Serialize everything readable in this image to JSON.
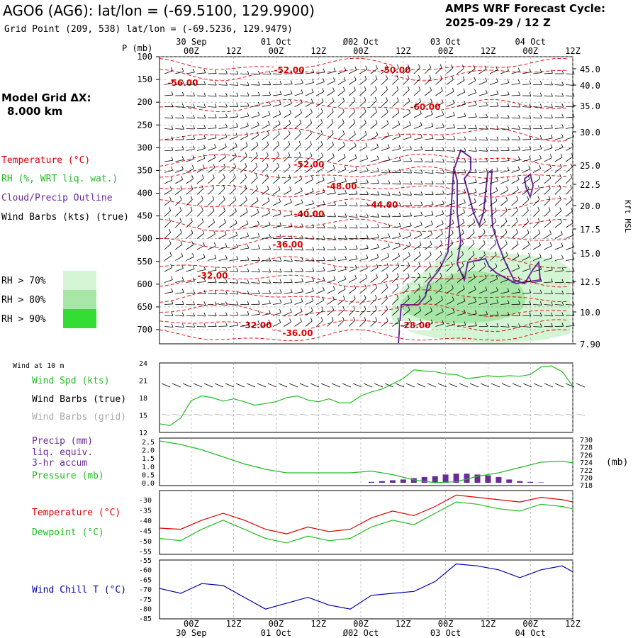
{
  "header": {
    "title": "AGO6 (AG6):  lat/lon = (-69.5100, 129.9900)",
    "subtitle": "Grid Point (209, 538) lat/lon = (-69.5236, 129.9479)",
    "cycle_line1": "AMPS WRF Forecast Cycle:",
    "cycle_line2": "2025-09-29 / 12  Z"
  },
  "colors": {
    "temperature": "#e00000",
    "rh": "#22bb22",
    "cloud": "#6a2a9a",
    "wind": "#000000",
    "grid_barb": "#aaaaaa",
    "wind_chill": "#0000aa",
    "rh70": "#d4f5d4",
    "rh80": "#a6e6a6",
    "rh90": "#33dd33"
  },
  "left_panel": {
    "model_grid_label": "Model Grid ΔX:",
    "model_grid_value": "8.000 km",
    "legend_temperature": "Temperature (°C)",
    "legend_rh": "RH (%, WRT liq. wat.)",
    "legend_cloud": "Cloud/Precip Outline",
    "legend_wind": "Wind Barbs (kts) (true)",
    "rh_70": "RH > 70%",
    "rh_80": "RH > 80%",
    "rh_90": "RH > 90%"
  },
  "chart_data": [
    {
      "type": "contour-profile",
      "name": "upper-air cross-section",
      "pressure_label": "P (mb)",
      "pressure_ticks": [
        100,
        150,
        200,
        250,
        300,
        350,
        400,
        450,
        500,
        550,
        600,
        650,
        700
      ],
      "height_ticks": [
        "45.0",
        "40.0",
        "35.0",
        "30.0",
        "25.0",
        "22.5",
        "20.0",
        "17.5",
        "15.0",
        "12.5",
        "10.0",
        "7.90"
      ],
      "height_axis_label": "Kft MSL",
      "time_top_dates": [
        "30 Sep",
        "01 Oct",
        "Ø02 Oct",
        "03 Oct",
        "04 Oct"
      ],
      "time_labels": [
        "00Z",
        "12Z",
        "00Z",
        "12Z",
        "00Z",
        "12Z",
        "00Z",
        "12Z",
        "00Z",
        "12Z"
      ],
      "temperature_labels": [
        "-52.00",
        "-50.00",
        "-56.00",
        "-60.00",
        "-52.00",
        "-48.00",
        "-44.00",
        "-40.00",
        "-36.00",
        "-32.00",
        "-32.00",
        "-36.00",
        "-28.00"
      ]
    },
    {
      "type": "line",
      "name": "wind speed",
      "header_label": "Wind at 10 m",
      "ylabel": "Wind Spd (kts)",
      "legend_barbs_true": "Wind Barbs (true)",
      "legend_barbs_grid": "Wind Barbs (grid)",
      "y_ticks": [
        24,
        21,
        18,
        15,
        12
      ],
      "ylim": [
        12,
        24
      ],
      "x_hours": [
        0,
        3,
        6,
        9,
        12,
        15,
        18,
        21,
        24,
        27,
        30,
        33,
        36,
        39,
        42,
        45,
        48,
        51,
        54,
        57,
        60,
        63,
        66,
        69,
        72,
        75,
        78,
        81,
        84,
        87,
        90,
        93,
        96,
        99,
        102,
        105,
        108,
        111,
        114,
        117
      ],
      "values": [
        13.5,
        13.2,
        14.5,
        17.5,
        18.3,
        18.0,
        17.4,
        17.8,
        17.3,
        16.7,
        17.0,
        17.3,
        18.0,
        18.3,
        17.6,
        17.3,
        17.8,
        17.1,
        17.1,
        18.3,
        19.0,
        19.5,
        20.4,
        21.3,
        22.8,
        22.6,
        22.5,
        22.1,
        22.0,
        21.3,
        21.5,
        21.8,
        21.6,
        21.8,
        21.7,
        22.0,
        23.3,
        23.5,
        22.5,
        20.0
      ]
    },
    {
      "type": "bar+line",
      "name": "precip and pressure",
      "ylabel_precip_1": "Precip (mm)",
      "ylabel_precip_2": "liq. equiv.",
      "ylabel_precip_3": "3-hr accum",
      "ylabel_pressure": "Pressure (mb)",
      "pressure_unit": "(mb)",
      "precip_ticks": [
        "2.5",
        "2.0",
        "1.5",
        "1.0",
        "0.5",
        "0.0"
      ],
      "pressure_ticks": [
        "730",
        "728",
        "726",
        "724",
        "722",
        "720",
        "718"
      ],
      "precip_hours": [
        60,
        63,
        66,
        69,
        72,
        75,
        78,
        81,
        84,
        87,
        90,
        93,
        96,
        99,
        102,
        105,
        108
      ],
      "precip_values": [
        0.05,
        0.1,
        0.15,
        0.2,
        0.28,
        0.35,
        0.4,
        0.5,
        0.55,
        0.55,
        0.5,
        0.45,
        0.35,
        0.2,
        0.1,
        0.05,
        0.02
      ],
      "pressure_hours": [
        0,
        6,
        12,
        18,
        24,
        30,
        36,
        42,
        48,
        54,
        60,
        66,
        72,
        78,
        84,
        90,
        96,
        102,
        108,
        114,
        117
      ],
      "pressure_values": [
        730,
        729,
        727.5,
        725.5,
        723.5,
        722,
        721,
        721,
        721,
        721,
        721.5,
        720.5,
        719,
        718.2,
        718.5,
        720,
        721,
        722.5,
        724,
        724.3,
        723.8
      ]
    },
    {
      "type": "line",
      "name": "temperature and dewpoint",
      "ylabel_temperature": "Temperature (°C)",
      "ylabel_dewpoint": "Dewpoint (°C)",
      "y_ticks": [
        "-30",
        "-35",
        "-40",
        "-45",
        "-50",
        "-55"
      ],
      "ylim": [
        -55,
        -27
      ],
      "temperature_hours": [
        0,
        6,
        12,
        18,
        24,
        30,
        36,
        42,
        48,
        54,
        60,
        66,
        72,
        78,
        84,
        90,
        96,
        102,
        108,
        114,
        117
      ],
      "temperature_values": [
        -43.5,
        -44,
        -40,
        -37,
        -40,
        -44,
        -46,
        -43,
        -45,
        -44,
        -39,
        -36,
        -38,
        -34,
        -29,
        -30,
        -31,
        -32,
        -30,
        -31,
        -32
      ],
      "dewpoint_hours": [
        0,
        6,
        12,
        18,
        24,
        30,
        36,
        42,
        48,
        54,
        60,
        66,
        72,
        78,
        84,
        90,
        96,
        102,
        108,
        114,
        117
      ],
      "dewpoint_values": [
        -48,
        -49,
        -44,
        -40,
        -44,
        -48,
        -50,
        -47,
        -49,
        -48,
        -43,
        -40,
        -42,
        -37,
        -32,
        -33,
        -35,
        -36,
        -33,
        -34,
        -35
      ]
    },
    {
      "type": "line",
      "name": "wind chill",
      "ylabel": "Wind Chill T (°C)",
      "y_ticks": [
        "-55",
        "-60",
        "-65",
        "-70",
        "-75",
        "-80",
        "-85"
      ],
      "ylim": [
        -85,
        -55
      ],
      "hours": [
        0,
        6,
        12,
        18,
        24,
        30,
        36,
        42,
        48,
        54,
        60,
        66,
        72,
        78,
        84,
        90,
        96,
        102,
        108,
        114,
        117
      ],
      "values": [
        -69.5,
        -72,
        -67,
        -68,
        -74,
        -80,
        -77,
        -74,
        -78,
        -80,
        -73,
        -72,
        -71,
        -66,
        -57,
        -58,
        -60,
        -64,
        -60,
        -58,
        -61
      ]
    }
  ]
}
